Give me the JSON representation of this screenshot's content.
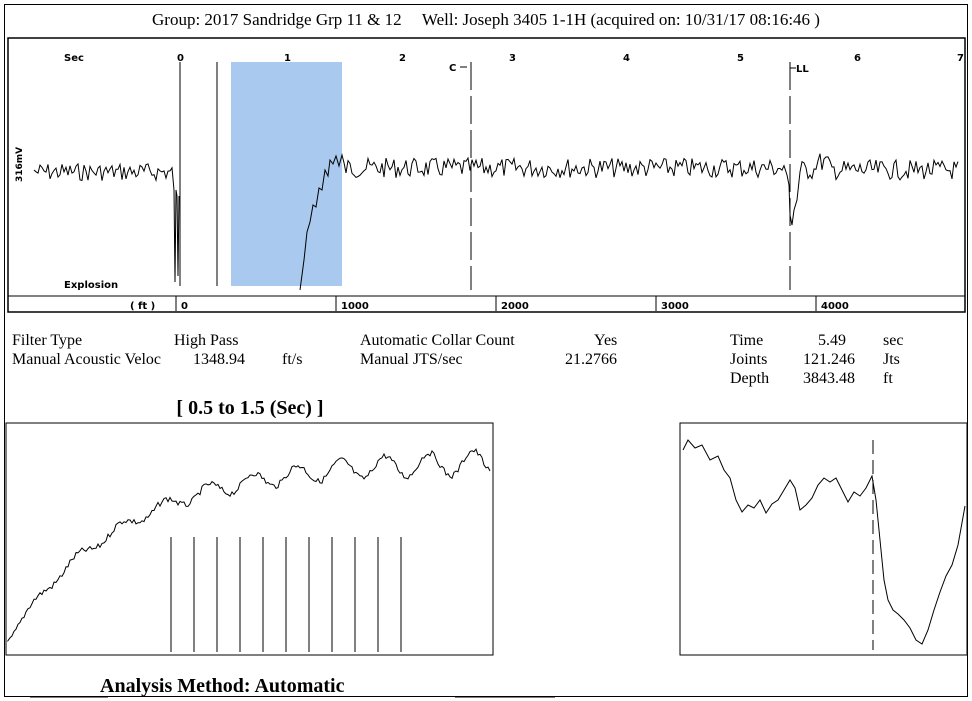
{
  "header": {
    "group": "Group: 2017 Sandridge Grp 11 & 12",
    "well": "Well: Joseph 3405 1-1H (acquired on: 10/31/17 08:16:46 )"
  },
  "main_chart": {
    "sec_label": "Sec",
    "ft_label": "( ft )",
    "amplitude_label": "316mV",
    "explosion_label": "Explosion",
    "marker_c": "C",
    "marker_ll": "LL",
    "highlight_color": "#a9c9ef"
  },
  "chart_data": [
    {
      "type": "line",
      "title": "",
      "x_axis_top": {
        "label": "Sec",
        "ticks": [
          "0",
          "1",
          "2",
          "3",
          "4",
          "5",
          "6",
          "7"
        ],
        "range": [
          0,
          7
        ]
      },
      "x_axis_bottom": {
        "label": "( ft )",
        "ticks": [
          "0",
          "1000",
          "2000",
          "3000",
          "4000"
        ]
      },
      "y_label": "316mV",
      "highlight_range_sec": [
        0.5,
        1.5
      ],
      "markers": [
        {
          "label": "C",
          "sec": 2.7
        },
        {
          "label": "LL",
          "sec": 5.5
        }
      ]
    },
    {
      "type": "line",
      "title": "[ 0.5  to  1.5 (Sec) ]",
      "x_range_sec": [
        0.5,
        1.5
      ],
      "vertical_markers": 11
    },
    {
      "type": "line",
      "title": "",
      "vertical_marker": "dashed"
    }
  ],
  "info": {
    "filter_type_label": "Filter Type",
    "filter_type_value": "High Pass",
    "manual_velocity_label": "Manual Acoustic Veloc",
    "manual_velocity_value": "1348.94",
    "manual_velocity_unit": "ft/s",
    "auto_collar_label": "Automatic Collar Count",
    "auto_collar_value": "Yes",
    "manual_jts_label": "Manual JTS/sec",
    "manual_jts_value": "21.2766",
    "time_label": "Time",
    "time_value": "5.49",
    "time_unit": "sec",
    "joints_label": "Joints",
    "joints_value": "121.246",
    "joints_unit": "Jts",
    "depth_label": "Depth",
    "depth_value": "3843.48",
    "depth_unit": "ft"
  },
  "range_title": "[ 0.5  to  1.5 (Sec) ]",
  "footer": "Analysis Method:   Automatic"
}
